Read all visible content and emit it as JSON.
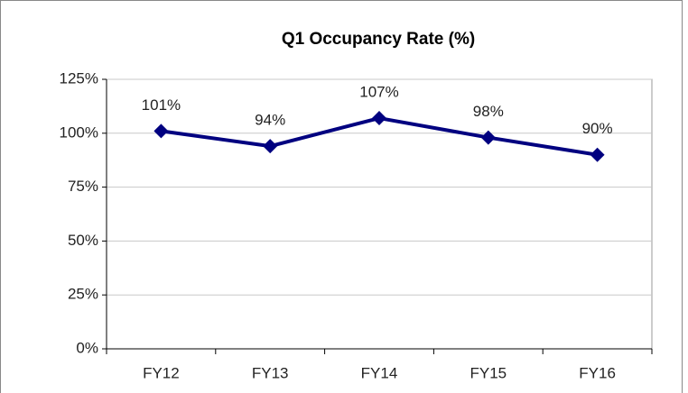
{
  "chart_data": {
    "type": "line",
    "title": "Q1 Occupancy Rate (%)",
    "categories": [
      "FY12",
      "FY13",
      "FY14",
      "FY15",
      "FY16"
    ],
    "values": [
      101,
      94,
      107,
      98,
      90
    ],
    "value_labels": [
      "101%",
      "94%",
      "107%",
      "98%",
      "90%"
    ],
    "color": "#000080",
    "ylim": [
      0,
      125
    ],
    "yticks": [
      {
        "value": 0,
        "label": "0%"
      },
      {
        "value": 25,
        "label": "25%"
      },
      {
        "value": 50,
        "label": "50%"
      },
      {
        "value": 75,
        "label": "75%"
      },
      {
        "value": 100,
        "label": "100%"
      },
      {
        "value": 125,
        "label": "125%"
      }
    ],
    "grid": true
  }
}
